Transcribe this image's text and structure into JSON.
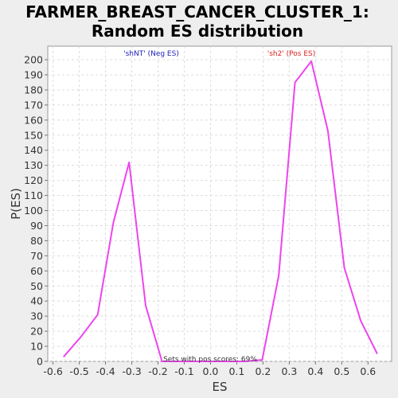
{
  "chart_data": {
    "type": "line",
    "title_line1": "FARMER_BREAST_CANCER_CLUSTER_1:",
    "title_line2": "Random ES distribution",
    "xlabel": "ES",
    "ylabel": "P(ES)",
    "xlim": [
      -0.62,
      0.69
    ],
    "ylim": [
      0,
      209
    ],
    "xticks": [
      -0.6,
      -0.5,
      -0.4,
      -0.3,
      -0.2,
      -0.1,
      0.0,
      0.1,
      0.2,
      0.3,
      0.4,
      0.5,
      0.6
    ],
    "xtick_labels": [
      "-0.6",
      "-0.5",
      "-0.4",
      "-0.3",
      "-0.2",
      "-0.1",
      "0.0",
      "0.1",
      "0.2",
      "0.3",
      "0.4",
      "0.5",
      "0.6"
    ],
    "yticks": [
      0,
      10,
      20,
      30,
      40,
      50,
      60,
      70,
      80,
      90,
      100,
      110,
      120,
      130,
      140,
      150,
      160,
      170,
      180,
      190,
      200
    ],
    "ytick_labels": [
      "0",
      "10",
      "20",
      "30",
      "40",
      "50",
      "60",
      "70",
      "80",
      "90",
      "100",
      "110",
      "120",
      "130",
      "140",
      "150",
      "160",
      "170",
      "180",
      "190",
      "200"
    ],
    "grid": true,
    "line_color": "#ee44ee",
    "series": [
      {
        "x": [
          -0.56,
          -0.495,
          -0.43,
          -0.37,
          -0.31,
          -0.247,
          -0.185,
          -0.12,
          -0.06,
          0.0,
          0.07,
          0.13,
          0.197,
          0.26,
          0.322,
          0.384,
          0.447,
          0.51,
          0.572,
          0.635
        ],
        "values": [
          3,
          16,
          31,
          92,
          132,
          37,
          0,
          0,
          0,
          0,
          0,
          0,
          1,
          57,
          185,
          199,
          153,
          62,
          27,
          5
        ]
      }
    ],
    "annotations": {
      "neg_label": "'shNT' (Neg ES)",
      "neg_color": "#2222bb",
      "pos_label": "'sh2' (Pos ES)",
      "pos_color": "#dd2222",
      "footnote": "Sets with pos scores: 69%"
    }
  }
}
